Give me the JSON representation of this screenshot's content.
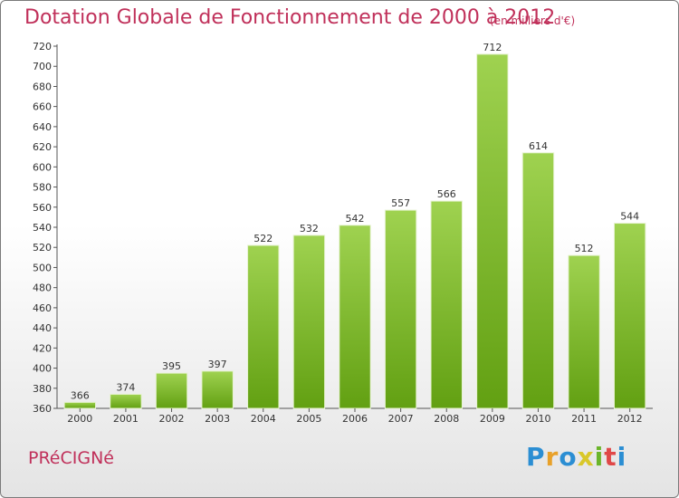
{
  "header": {
    "title": "Dotation Globale de Fonctionnement de 2000 à 2012",
    "unit": "(en milliers d'€)"
  },
  "footer": {
    "commune": "PRéCIGNé",
    "brand": "Proxiti"
  },
  "colors": {
    "title": "#c0305a",
    "bar_light": "#9fd250",
    "bar_dark": "#62a012",
    "logo": [
      "#2b8ed3",
      "#e8a12a",
      "#2b8ed3",
      "#d9c82a",
      "#6bb52a",
      "#e04848",
      "#2b8ed3"
    ]
  },
  "chart_data": {
    "type": "bar",
    "title": "Dotation Globale de Fonctionnement de 2000 à 2012",
    "subtitle": "(en milliers d'€)",
    "xlabel": "",
    "ylabel": "",
    "categories": [
      "2000",
      "2001",
      "2002",
      "2003",
      "2004",
      "2005",
      "2006",
      "2007",
      "2008",
      "2009",
      "2010",
      "2011",
      "2012"
    ],
    "values": [
      366,
      374,
      395,
      397,
      522,
      532,
      542,
      557,
      566,
      712,
      614,
      512,
      544
    ],
    "ylim": [
      360,
      720
    ],
    "yticks": [
      360,
      380,
      400,
      420,
      440,
      460,
      480,
      500,
      520,
      540,
      560,
      580,
      600,
      620,
      640,
      660,
      680,
      700,
      720
    ],
    "grid": false,
    "legend": "none"
  }
}
